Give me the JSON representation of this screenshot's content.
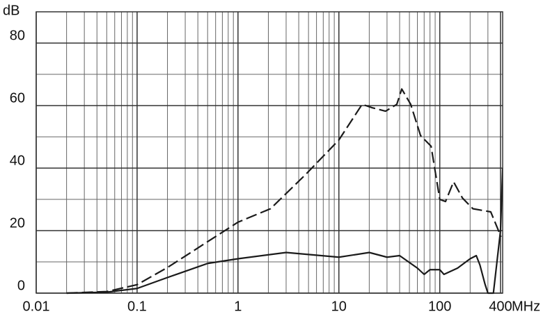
{
  "chart_data": {
    "type": "line",
    "x_label": "MHz",
    "y_label": "dB",
    "log_x": true,
    "grid": true,
    "xlim": [
      0.01,
      420
    ],
    "xticks": [
      0.01,
      0.1,
      1,
      10,
      100,
      400
    ],
    "x_minor_ticks": [
      0.02,
      0.03,
      0.04,
      0.05,
      0.06,
      0.07,
      0.08,
      0.09,
      0.2,
      0.3,
      0.4,
      0.5,
      0.6,
      0.7,
      0.8,
      0.9,
      2,
      3,
      4,
      5,
      6,
      7,
      8,
      9,
      20,
      30,
      40,
      50,
      60,
      70,
      80,
      90,
      200,
      300
    ],
    "ylim": [
      0,
      90
    ],
    "yticks": [
      0,
      20,
      40,
      60,
      80
    ],
    "y_minor_ticks": [
      10,
      30,
      50,
      70,
      90
    ],
    "series": [
      {
        "color": "#1a1a1a",
        "dashed": true,
        "x": [
          0.02,
          0.05,
          0.1,
          0.2,
          1,
          2.1,
          4.7,
          10,
          17,
          21.5,
          29,
          37.5,
          42,
          51.5,
          64.5,
          82,
          100,
          114,
          137,
          168,
          213,
          320,
          405
        ],
        "values": [
          0,
          0.5,
          2.7,
          8.2,
          22.7,
          27,
          38,
          49,
          60.4,
          59.3,
          58.2,
          60.4,
          65.3,
          60.4,
          50.4,
          47,
          30,
          29.3,
          35.6,
          30.4,
          27,
          26,
          18
        ]
      },
      {
        "color": "#1a1a1a",
        "dashed": false,
        "x": [
          0.02,
          0.05,
          0.1,
          0.2,
          0.5,
          1,
          3,
          10,
          20,
          30,
          40,
          60,
          70,
          80,
          100,
          110,
          150,
          200,
          230,
          250,
          280,
          300,
          340,
          400,
          420
        ],
        "values": [
          0,
          0.3,
          1.5,
          5,
          9.5,
          11,
          13,
          11.5,
          13,
          11.5,
          12,
          8,
          6,
          7.5,
          7.5,
          6,
          8,
          11,
          12,
          9,
          3,
          0,
          0,
          20,
          40
        ]
      }
    ]
  }
}
